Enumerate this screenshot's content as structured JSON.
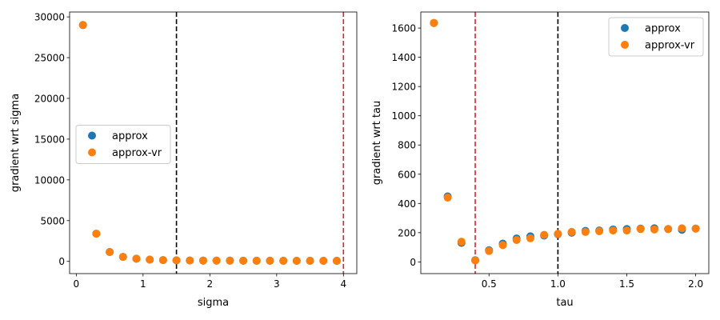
{
  "chart_data": [
    {
      "type": "scatter",
      "xlabel": "sigma",
      "ylabel": "gradient wrt sigma",
      "xlim": [
        -0.1,
        4.2
      ],
      "ylim": [
        -1500,
        30600
      ],
      "xticks": [
        0,
        1,
        2,
        3,
        4
      ],
      "yticks": [
        0,
        5000,
        10000,
        15000,
        20000,
        25000,
        30000
      ],
      "vlines": [
        {
          "x": 1.5,
          "color": "#000000",
          "style": "dashed"
        },
        {
          "x": 4.0,
          "color": "#d62728",
          "style": "dashed"
        }
      ],
      "legend": {
        "position": "center-left",
        "entries": [
          "approx",
          "approx-vr"
        ]
      },
      "series": [
        {
          "name": "approx",
          "color": "#1f77b4",
          "x": [
            0.1,
            0.3,
            0.5,
            0.7,
            0.9,
            1.1,
            1.3,
            1.5,
            1.7,
            1.9,
            2.1,
            2.3,
            2.5,
            2.7,
            2.9,
            3.1,
            3.3,
            3.5,
            3.7,
            3.9
          ],
          "y": [
            29000,
            3400,
            1150,
            550,
            330,
            220,
            160,
            130,
            110,
            100,
            95,
            90,
            85,
            80,
            78,
            75,
            72,
            70,
            68,
            66
          ]
        },
        {
          "name": "approx-vr",
          "color": "#ff7f0e",
          "x": [
            0.1,
            0.3,
            0.5,
            0.7,
            0.9,
            1.1,
            1.3,
            1.5,
            1.7,
            1.9,
            2.1,
            2.3,
            2.5,
            2.7,
            2.9,
            3.1,
            3.3,
            3.5,
            3.7,
            3.9
          ],
          "y": [
            29000,
            3400,
            1150,
            550,
            330,
            220,
            160,
            130,
            110,
            100,
            95,
            90,
            85,
            80,
            78,
            75,
            72,
            70,
            68,
            66
          ]
        }
      ]
    },
    {
      "type": "scatter",
      "xlabel": "tau",
      "ylabel": "gradient wrt tau",
      "xlim": [
        0.005,
        2.095
      ],
      "ylim": [
        -80,
        1710
      ],
      "xticks": [
        0.5,
        1.0,
        1.5,
        2.0
      ],
      "xtick_labels": [
        "0.5",
        "1.0",
        "1.5",
        "2.0"
      ],
      "yticks": [
        0,
        200,
        400,
        600,
        800,
        1000,
        1200,
        1400,
        1600
      ],
      "vlines": [
        {
          "x": 0.4,
          "color": "#d62728",
          "style": "dashed"
        },
        {
          "x": 1.0,
          "color": "#000000",
          "style": "dashed"
        }
      ],
      "legend": {
        "position": "top-right",
        "entries": [
          "approx",
          "approx-vr"
        ]
      },
      "series": [
        {
          "name": "approx",
          "color": "#1f77b4",
          "x": [
            0.1,
            0.2,
            0.3,
            0.4,
            0.5,
            0.6,
            0.7,
            0.8,
            0.9,
            1.0,
            1.1,
            1.2,
            1.3,
            1.4,
            1.5,
            1.6,
            1.7,
            1.8,
            1.9,
            2.0
          ],
          "y": [
            1635,
            448,
            130,
            12,
            80,
            125,
            160,
            175,
            180,
            190,
            200,
            212,
            215,
            222,
            225,
            228,
            230,
            225,
            220,
            228
          ]
        },
        {
          "name": "approx-vr",
          "color": "#ff7f0e",
          "x": [
            0.1,
            0.2,
            0.3,
            0.4,
            0.5,
            0.6,
            0.7,
            0.8,
            0.9,
            1.0,
            1.1,
            1.2,
            1.3,
            1.4,
            1.5,
            1.6,
            1.7,
            1.8,
            1.9,
            2.0
          ],
          "y": [
            1635,
            440,
            138,
            10,
            75,
            115,
            150,
            162,
            185,
            192,
            205,
            205,
            210,
            215,
            215,
            225,
            222,
            225,
            230,
            228
          ]
        }
      ]
    }
  ]
}
